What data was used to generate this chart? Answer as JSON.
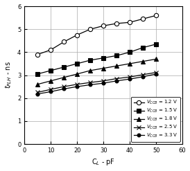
{
  "xlabel": "C$_L$ - pF",
  "ylabel": "$t_{PLH}$ - ns",
  "xlim": [
    0,
    60
  ],
  "ylim": [
    0,
    6
  ],
  "xticks": [
    0,
    10,
    20,
    30,
    40,
    50,
    60
  ],
  "yticks": [
    0,
    1,
    2,
    3,
    4,
    5,
    6
  ],
  "series": [
    {
      "x": [
        5,
        10,
        15,
        20,
        25,
        30,
        35,
        40,
        45,
        50
      ],
      "y": [
        3.9,
        4.1,
        4.45,
        4.75,
        5.0,
        5.15,
        5.25,
        5.3,
        5.45,
        5.6
      ],
      "marker": "o",
      "markerfacecolor": "white",
      "markersize": 4.5
    },
    {
      "x": [
        5,
        10,
        15,
        20,
        25,
        30,
        35,
        40,
        45,
        50
      ],
      "y": [
        3.05,
        3.2,
        3.35,
        3.5,
        3.65,
        3.75,
        3.85,
        4.0,
        4.2,
        4.35
      ],
      "marker": "s",
      "markerfacecolor": "black",
      "markersize": 4.0
    },
    {
      "x": [
        5,
        10,
        15,
        20,
        25,
        30,
        35,
        40,
        45,
        50
      ],
      "y": [
        2.6,
        2.75,
        2.9,
        3.05,
        3.2,
        3.3,
        3.4,
        3.5,
        3.6,
        3.7
      ],
      "marker": "^",
      "markerfacecolor": "black",
      "markersize": 4.0
    },
    {
      "x": [
        5,
        10,
        15,
        20,
        25,
        30,
        35,
        40,
        45,
        50
      ],
      "y": [
        2.25,
        2.38,
        2.5,
        2.6,
        2.68,
        2.75,
        2.85,
        2.92,
        3.02,
        3.12
      ],
      "marker": "x",
      "markerfacecolor": "black",
      "markersize": 4.5
    },
    {
      "x": [
        5,
        10,
        15,
        20,
        25,
        30,
        35,
        40,
        45,
        50
      ],
      "y": [
        2.18,
        2.28,
        2.4,
        2.5,
        2.58,
        2.65,
        2.75,
        2.83,
        2.93,
        3.05
      ],
      "marker": "o",
      "markerfacecolor": "black",
      "markersize": 3.5
    }
  ],
  "legend_labels": [
    "$V_{CCB}$ = 1.2 V",
    "$V_{CCB}$ = 1.5 V",
    "$V_{CCB}$ = 1.8 V",
    "$V_{CCB}$ = 2.5 V",
    "$V_{CCB}$ = 3.3 V"
  ],
  "background_color": "white",
  "grid_color": "#aaaaaa",
  "linewidth": 0.9,
  "tick_fontsize": 6,
  "label_fontsize": 7
}
